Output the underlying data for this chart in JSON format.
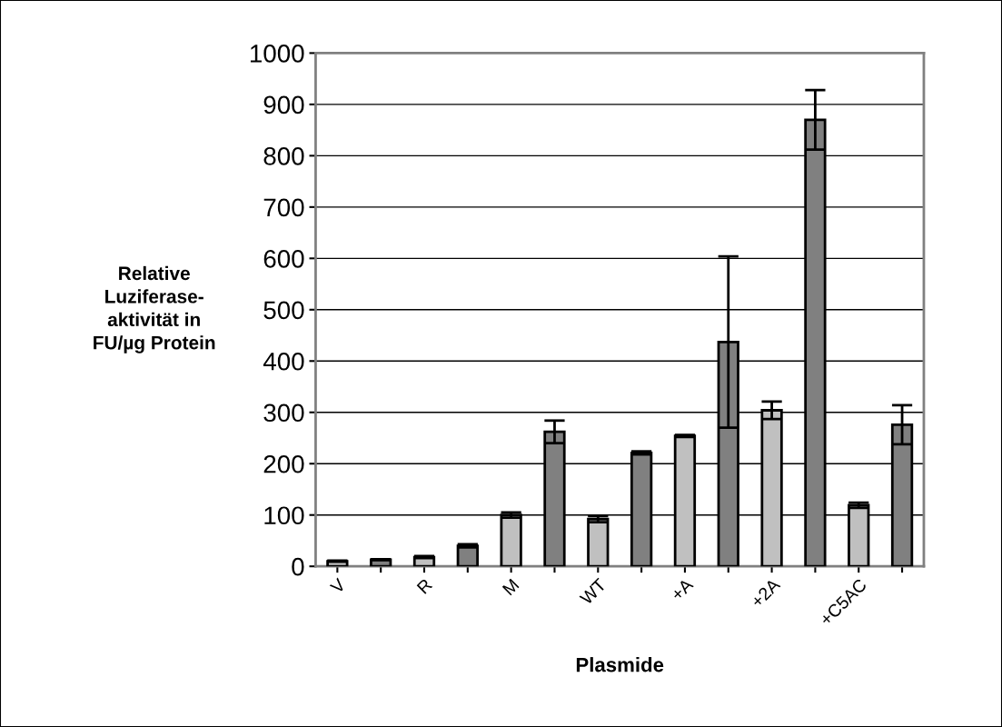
{
  "chart_data": {
    "type": "bar",
    "xlabel": "Plasmide",
    "ylabel": "Relative\nLuziferase-\naktivität in\nFU/µg Protein",
    "categories": [
      "V",
      null,
      "R",
      null,
      "M",
      null,
      "WT",
      null,
      "+A",
      null,
      "+2A",
      null,
      "+C5AC",
      null
    ],
    "values": [
      10,
      13,
      18,
      40,
      100,
      262,
      92,
      221,
      254,
      437,
      304,
      870,
      119,
      276
    ],
    "errors": [
      1,
      1,
      2,
      3,
      5,
      22,
      6,
      3,
      2,
      167,
      17,
      58,
      5,
      38
    ],
    "colors": [
      "#c0c0c0",
      "#808080",
      "#c0c0c0",
      "#808080",
      "#c0c0c0",
      "#808080",
      "#c0c0c0",
      "#808080",
      "#c0c0c0",
      "#808080",
      "#c0c0c0",
      "#808080",
      "#c0c0c0",
      "#808080"
    ],
    "ylim": [
      0,
      1000
    ],
    "yticks": [
      0,
      100,
      200,
      300,
      400,
      500,
      600,
      700,
      800,
      900,
      1000
    ],
    "grid": "y"
  }
}
